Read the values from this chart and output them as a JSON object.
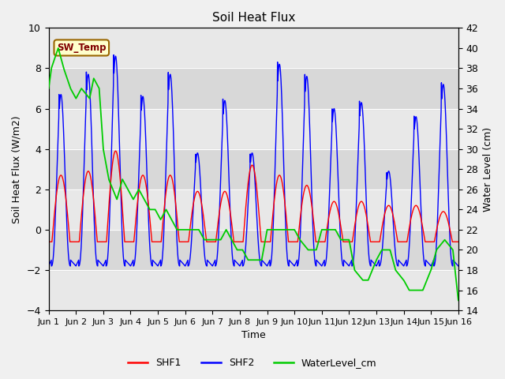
{
  "title": "Soil Heat Flux",
  "ylabel_left": "Soil Heat Flux (W/m2)",
  "ylabel_right": "Water Level (cm)",
  "xlabel": "Time",
  "ylim_left": [
    -4,
    10
  ],
  "ylim_right": [
    14,
    42
  ],
  "x_tick_labels": [
    "Jun 1",
    "Jun 2",
    "Jun 3",
    "Jun 4",
    "Jun 5",
    "Jun 6",
    "Jun 7",
    "Jun 8",
    "Jun 9",
    "Jun 10",
    "Jun 11",
    "Jun 12",
    "Jun 13",
    "Jun 14",
    "Jun 15",
    "Jun 16"
  ],
  "color_shf1": "#ff0000",
  "color_shf2": "#0000ff",
  "color_water": "#00cc00",
  "fig_bg": "#f0f0f0",
  "plot_bg": "#ffffff",
  "band1_color": "#e8e8e8",
  "band2_color": "#d8d8d8",
  "sw_temp_bg": "#ffffcc",
  "sw_temp_fg": "#800000",
  "sw_temp_border": "#996600",
  "legend_labels": [
    "SHF1",
    "SHF2",
    "WaterLevel_cm"
  ],
  "shf2_peaks": [
    6.7,
    7.7,
    8.6,
    6.6,
    7.7,
    3.8,
    6.4,
    3.8,
    8.2,
    7.6,
    6.0,
    6.3,
    2.9,
    5.6,
    7.2
  ],
  "shf1_peaks": [
    3.3,
    3.5,
    4.5,
    3.3,
    3.3,
    2.5,
    2.5,
    3.8,
    3.3,
    2.8,
    2.0,
    2.0,
    1.8,
    1.8,
    1.5
  ],
  "water_profile_x": [
    0.0,
    0.1,
    0.35,
    0.55,
    0.8,
    1.0,
    1.2,
    1.5,
    1.65,
    1.85,
    2.0,
    2.2,
    2.5,
    2.7,
    2.9,
    3.1,
    3.3,
    3.5,
    3.7,
    3.9,
    4.1,
    4.3,
    4.5,
    4.7,
    4.9,
    5.1,
    5.3,
    5.5,
    5.7,
    5.9,
    6.1,
    6.3,
    6.5,
    6.7,
    6.9,
    7.1,
    7.3,
    7.5,
    7.8,
    8.0,
    8.2,
    8.5,
    8.7,
    9.0,
    9.2,
    9.5,
    9.8,
    10.0,
    10.2,
    10.5,
    10.7,
    11.0,
    11.2,
    11.5,
    11.7,
    12.0,
    12.2,
    12.5,
    12.7,
    13.0,
    13.2,
    13.5,
    13.7,
    14.0,
    14.2,
    14.5,
    14.8,
    15.0
  ],
  "water_profile_y": [
    36,
    38,
    40,
    38,
    36,
    35,
    36,
    35,
    37,
    36,
    30,
    27,
    25,
    27,
    26,
    25,
    26,
    25,
    24,
    24,
    23,
    24,
    23,
    22,
    22,
    22,
    22,
    22,
    21,
    21,
    21,
    21,
    22,
    21,
    20,
    20,
    19,
    19,
    19,
    22,
    22,
    22,
    22,
    22,
    21,
    20,
    20,
    22,
    22,
    22,
    21,
    21,
    18,
    17,
    17,
    19,
    20,
    20,
    18,
    17,
    16,
    16,
    16,
    18,
    20,
    21,
    20,
    15
  ]
}
